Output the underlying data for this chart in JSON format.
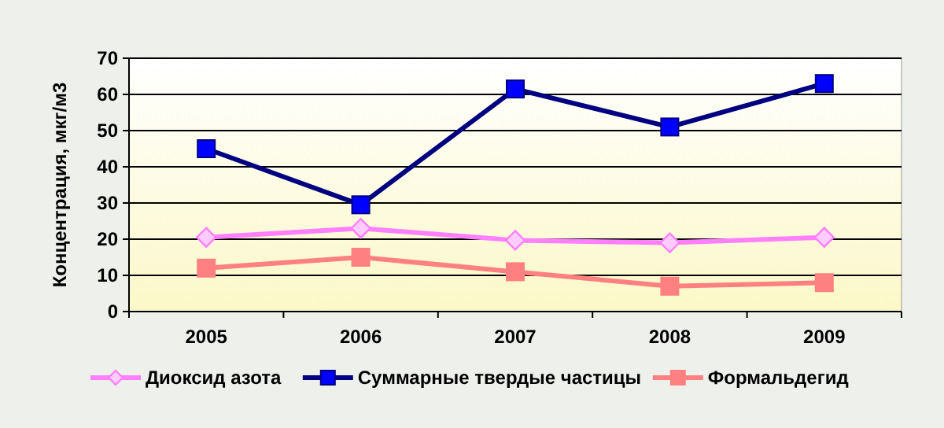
{
  "chart_data": {
    "type": "line",
    "ylabel": "Концентрация, мкг/м3",
    "categories": [
      "2005",
      "2006",
      "2007",
      "2008",
      "2009"
    ],
    "series": [
      {
        "name": "Диоксид азота",
        "color": "#ff80ff",
        "marker": "diamond",
        "values": [
          20.5,
          23,
          19.7,
          19,
          20.5
        ]
      },
      {
        "name": "Суммарные твердые частицы",
        "color": "#000080",
        "marker": "square",
        "values": [
          45,
          29.5,
          61.5,
          51,
          63
        ]
      },
      {
        "name": "Формальдегид",
        "color": "#ff8080",
        "marker": "square",
        "values": [
          12,
          15,
          11,
          7,
          8
        ]
      }
    ],
    "ylim": [
      0,
      70
    ],
    "yticks": [
      0,
      10,
      20,
      30,
      40,
      50,
      60,
      70
    ],
    "grid": "y",
    "legend": "bottom",
    "line_style": "solid"
  }
}
